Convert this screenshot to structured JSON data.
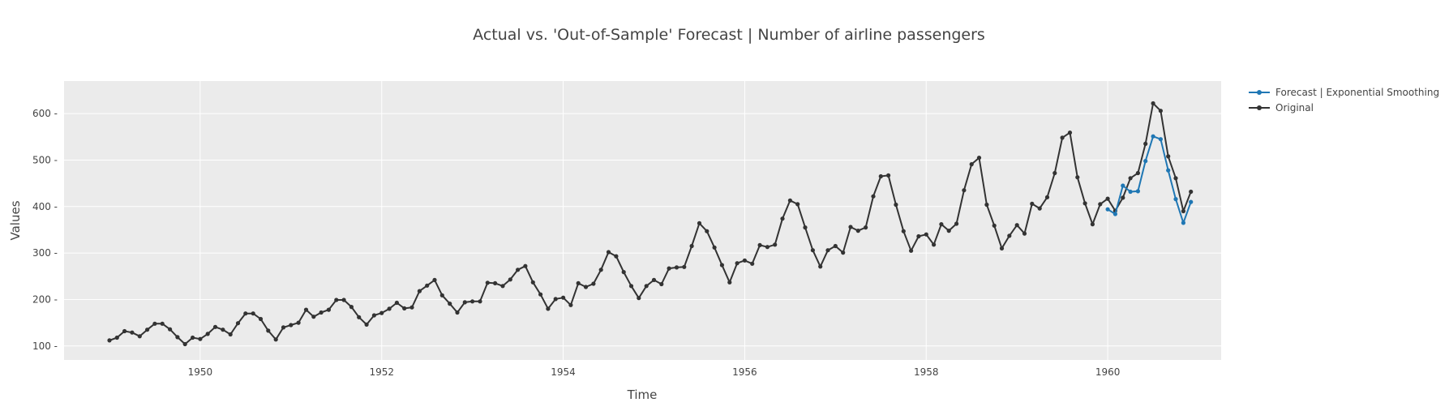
{
  "chart_data": {
    "type": "line",
    "title": "Actual vs. 'Out-of-Sample' Forecast | Number of airline passengers",
    "xlabel": "Time",
    "ylabel": "Values",
    "xlim": [
      1948.5,
      1961.25
    ],
    "ylim": [
      70,
      670
    ],
    "x_ticks": [
      1950,
      1952,
      1954,
      1956,
      1958,
      1960
    ],
    "y_ticks": [
      100,
      200,
      300,
      400,
      500,
      600
    ],
    "x_tick_labels": [
      "1950",
      "1952",
      "1954",
      "1956",
      "1958",
      "1960"
    ],
    "y_tick_labels": [
      "100",
      "200",
      "300",
      "400",
      "500",
      "600"
    ],
    "grid": true,
    "legend_position": "top-right",
    "start_year": 1949,
    "plot_bg": "#ebebeb",
    "series": [
      {
        "name": "Forecast | Exponential Smoothing",
        "color": "#1f77b4",
        "start_year": 1960,
        "values": [
          394,
          384,
          445,
          432,
          433,
          498,
          551,
          545,
          478,
          416,
          365,
          410
        ]
      },
      {
        "name": "Original",
        "color": "#333333",
        "start_year": 1949,
        "values": [
          112,
          118,
          132,
          129,
          121,
          135,
          148,
          148,
          136,
          119,
          104,
          118,
          115,
          126,
          141,
          135,
          125,
          149,
          170,
          170,
          158,
          133,
          114,
          140,
          145,
          150,
          178,
          163,
          172,
          178,
          199,
          199,
          184,
          162,
          146,
          166,
          171,
          180,
          193,
          181,
          183,
          218,
          230,
          242,
          209,
          191,
          172,
          194,
          196,
          196,
          236,
          235,
          229,
          243,
          264,
          272,
          237,
          211,
          180,
          201,
          204,
          188,
          235,
          227,
          234,
          264,
          302,
          293,
          259,
          229,
          203,
          229,
          242,
          233,
          267,
          269,
          270,
          315,
          364,
          347,
          312,
          274,
          237,
          278,
          284,
          277,
          317,
          313,
          318,
          374,
          413,
          405,
          355,
          306,
          271,
          306,
          315,
          301,
          356,
          348,
          355,
          422,
          465,
          467,
          404,
          347,
          305,
          336,
          340,
          318,
          362,
          348,
          363,
          435,
          491,
          505,
          404,
          359,
          310,
          337,
          360,
          342,
          406,
          396,
          420,
          472,
          548,
          559,
          463,
          407,
          362,
          405,
          417,
          391,
          419,
          461,
          472,
          535,
          622,
          606,
          508,
          461,
          390,
          432
        ]
      }
    ]
  }
}
